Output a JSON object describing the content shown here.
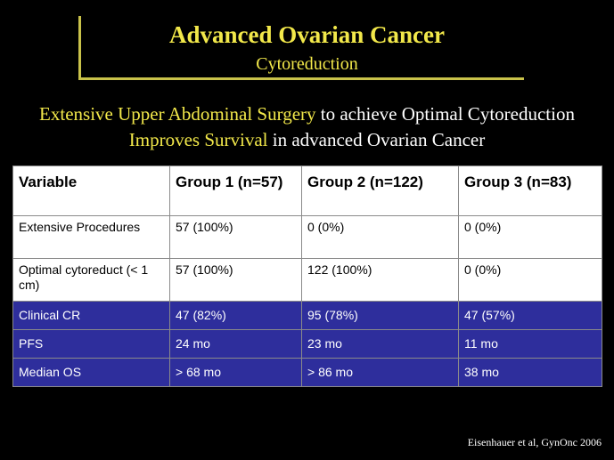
{
  "slide": {
    "title": "Advanced Ovarian Cancer",
    "subtitle": "Cytoreduction",
    "headline": {
      "line1_highlight": "Extensive Upper Abdominal Surgery",
      "line1_rest": " to achieve Optimal Cytoreduction",
      "line2_highlight": "Improves Survival",
      "line2_rest": " in advanced Ovarian Cancer"
    },
    "table": {
      "headers": [
        "Variable",
        "Group 1 (n=57)",
        "Group 2 (n=122)",
        "Group 3 (n=83)"
      ],
      "rows": [
        [
          "Extensive Procedures",
          "57 (100%)",
          "0 (0%)",
          "0 (0%)"
        ],
        [
          "Optimal cytoreduct (< 1 cm)",
          "57 (100%)",
          "122 (100%)",
          "0 (0%)"
        ],
        [
          "Clinical CR",
          "47 (82%)",
          "95 (78%)",
          "47 (57%)"
        ],
        [
          "PFS",
          "24 mo",
          "23 mo",
          "11 mo"
        ],
        [
          "Median OS",
          "> 68 mo",
          "> 86 mo",
          "38 mo"
        ]
      ]
    },
    "citation": "Eisenhauer et al, GynOnc 2006"
  },
  "colors": {
    "background": "#000000",
    "title_yellow": "#f2e84a",
    "row_blue": "#2e2e9c"
  }
}
